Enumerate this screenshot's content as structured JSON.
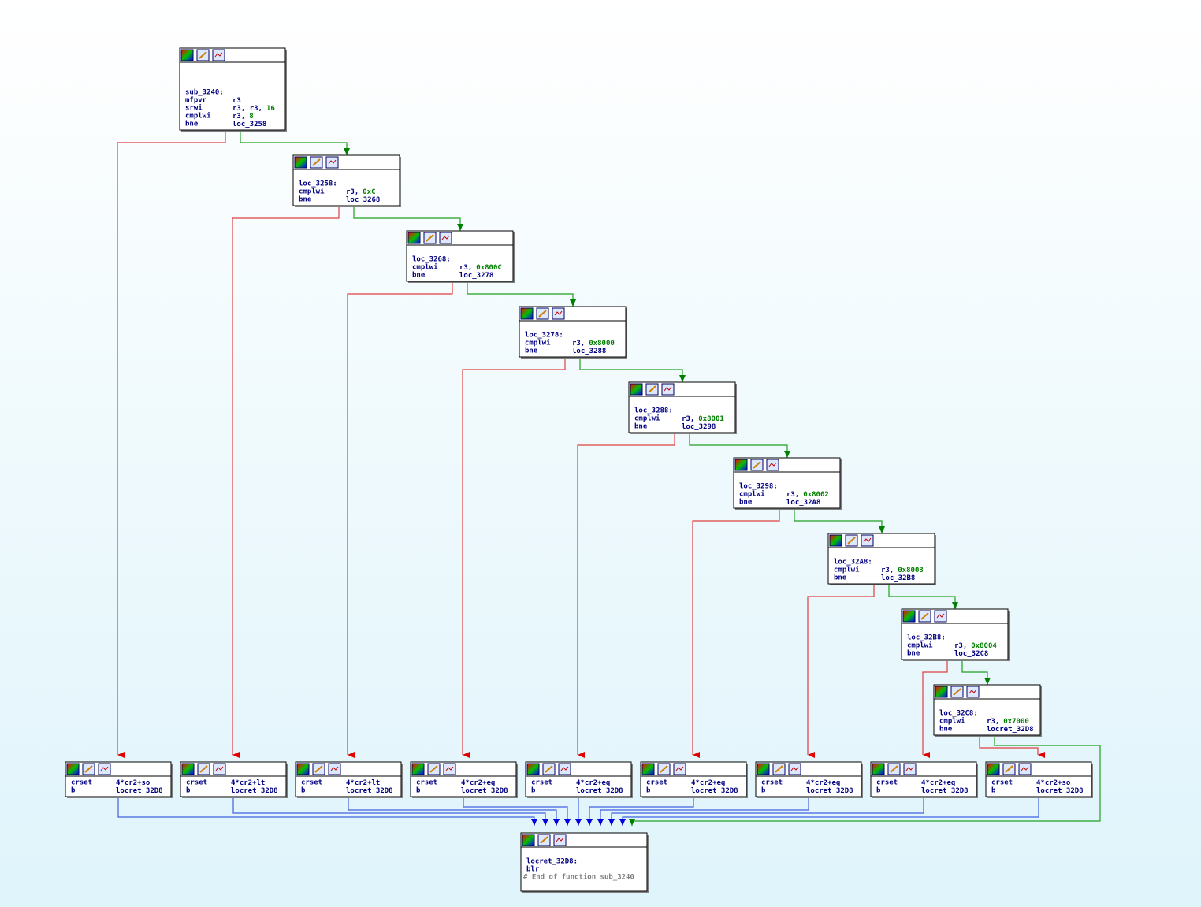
{
  "nodes": [
    {
      "label": "sub_3240:",
      "lines": [
        {
          "op": "mfpvr",
          "args": "r3"
        },
        {
          "op": "srwi",
          "args": "r3, r3,",
          "num": "16"
        },
        {
          "op": "cmplwi",
          "args": "r3,",
          "num": "8"
        },
        {
          "op": "bne",
          "args": "loc_3258"
        }
      ]
    },
    {
      "label": "loc_3258:",
      "lines": [
        {
          "op": "cmplwi",
          "args": "r3,",
          "num": "0xC"
        },
        {
          "op": "bne",
          "args": "loc_3268"
        }
      ]
    },
    {
      "label": "loc_3268:",
      "lines": [
        {
          "op": "cmplwi",
          "args": "r3,",
          "num": "0x800C"
        },
        {
          "op": "bne",
          "args": "loc_3278"
        }
      ]
    },
    {
      "label": "loc_3278:",
      "lines": [
        {
          "op": "cmplwi",
          "args": "r3,",
          "num": "0x8000"
        },
        {
          "op": "bne",
          "args": "loc_3288"
        }
      ]
    },
    {
      "label": "loc_3288:",
      "lines": [
        {
          "op": "cmplwi",
          "args": "r3,",
          "num": "0x8001"
        },
        {
          "op": "bne",
          "args": "loc_3298"
        }
      ]
    },
    {
      "label": "loc_3298:",
      "lines": [
        {
          "op": "cmplwi",
          "args": "r3,",
          "num": "0x8002"
        },
        {
          "op": "bne",
          "args": "loc_32A8"
        }
      ]
    },
    {
      "label": "loc_32A8:",
      "lines": [
        {
          "op": "cmplwi",
          "args": "r3,",
          "num": "0x8003"
        },
        {
          "op": "bne",
          "args": "loc_32B8"
        }
      ]
    },
    {
      "label": "loc_32B8:",
      "lines": [
        {
          "op": "cmplwi",
          "args": "r3,",
          "num": "0x8004"
        },
        {
          "op": "bne",
          "args": "loc_32C8"
        }
      ]
    },
    {
      "label": "loc_32C8:",
      "lines": [
        {
          "op": "cmplwi",
          "args": "r3,",
          "num": "0x7000"
        },
        {
          "op": "bne",
          "args": "locret_32D8"
        }
      ]
    },
    {
      "lines": [
        {
          "op": "crset",
          "args": "4*cr2+so"
        },
        {
          "op": "b",
          "args": "locret_32D8"
        }
      ]
    },
    {
      "lines": [
        {
          "op": "crset",
          "args": "4*cr2+lt"
        },
        {
          "op": "b",
          "args": "locret_32D8"
        }
      ]
    },
    {
      "lines": [
        {
          "op": "crset",
          "args": "4*cr2+lt"
        },
        {
          "op": "b",
          "args": "locret_32D8"
        }
      ]
    },
    {
      "lines": [
        {
          "op": "crset",
          "args": "4*cr2+eq"
        },
        {
          "op": "b",
          "args": "locret_32D8"
        }
      ]
    },
    {
      "lines": [
        {
          "op": "crset",
          "args": "4*cr2+eq"
        },
        {
          "op": "b",
          "args": "locret_32D8"
        }
      ]
    },
    {
      "lines": [
        {
          "op": "crset",
          "args": "4*cr2+eq"
        },
        {
          "op": "b",
          "args": "locret_32D8"
        }
      ]
    },
    {
      "lines": [
        {
          "op": "crset",
          "args": "4*cr2+eq"
        },
        {
          "op": "b",
          "args": "locret_32D8"
        }
      ]
    },
    {
      "lines": [
        {
          "op": "crset",
          "args": "4*cr2+eq"
        },
        {
          "op": "b",
          "args": "locret_32D8"
        }
      ]
    },
    {
      "lines": [
        {
          "op": "crset",
          "args": "4*cr2+so"
        },
        {
          "op": "b",
          "args": "locret_32D8"
        }
      ]
    },
    {
      "label": "locret_32D8:",
      "lines": [
        {
          "op": "blr"
        }
      ],
      "comment": "# End of function sub_3240"
    }
  ]
}
